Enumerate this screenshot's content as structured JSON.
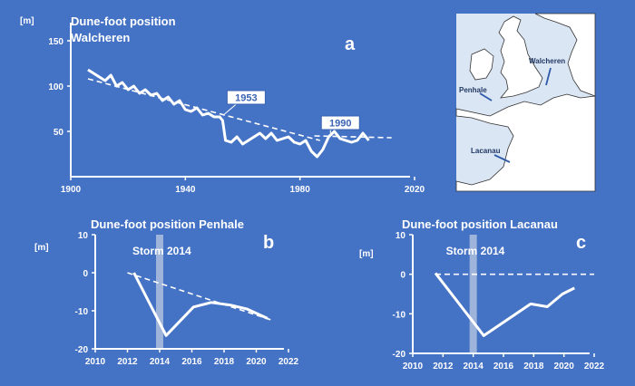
{
  "chart_data": [
    {
      "type": "line",
      "panel_label": "a",
      "title": [
        "Dune-foot position",
        "Walcheren"
      ],
      "ylabel": "[m]",
      "xlim": [
        1900,
        2020
      ],
      "ylim": [
        0,
        170
      ],
      "x_ticks": [
        1900,
        1940,
        1980,
        2020
      ],
      "y_ticks": [
        50,
        100,
        150
      ],
      "series": [
        {
          "style": "solid",
          "x": [
            1906,
            1910,
            1912,
            1914,
            1916,
            1918,
            1920,
            1922,
            1924,
            1926,
            1928,
            1930,
            1932,
            1934,
            1936,
            1938,
            1940,
            1942,
            1944,
            1946,
            1948,
            1950,
            1952,
            1953,
            1954,
            1956,
            1958,
            1960,
            1962,
            1964,
            1966,
            1968,
            1970,
            1972,
            1974,
            1976,
            1978,
            1980,
            1982,
            1984,
            1986,
            1988,
            1990,
            1992,
            1994,
            1996,
            1998,
            2000,
            2002,
            2004
          ],
          "y": [
            118,
            110,
            106,
            112,
            100,
            104,
            96,
            100,
            92,
            96,
            90,
            92,
            84,
            88,
            80,
            84,
            74,
            72,
            76,
            68,
            70,
            66,
            66,
            62,
            40,
            38,
            44,
            36,
            40,
            44,
            48,
            42,
            48,
            40,
            42,
            44,
            38,
            36,
            40,
            28,
            22,
            30,
            44,
            50,
            42,
            40,
            38,
            40,
            48,
            40
          ]
        },
        {
          "style": "dashed",
          "x": [
            1906,
            1987
          ],
          "y": [
            108,
            40
          ]
        },
        {
          "style": "dashed",
          "x": [
            1985,
            2012
          ],
          "y": [
            45,
            43
          ]
        }
      ],
      "annotations": [
        {
          "text": "1953",
          "x": 1953,
          "y": 66
        },
        {
          "text": "1990",
          "x": 1990,
          "y": 45
        }
      ],
      "map": {
        "labels": [
          "Walcheren",
          "Penhale",
          "Lacanau"
        ]
      }
    },
    {
      "type": "line",
      "panel_label": "b",
      "title": "Dune-foot position Penhale",
      "ylabel": "[m]",
      "xlim": [
        2010,
        2022
      ],
      "ylim": [
        -20,
        10
      ],
      "x_ticks": [
        2010,
        2012,
        2014,
        2016,
        2018,
        2020,
        2022
      ],
      "y_ticks": [
        -20,
        -10,
        0,
        10
      ],
      "storm": {
        "label": "Storm 2014",
        "x": 2014
      },
      "series": [
        {
          "style": "solid",
          "x": [
            2012.4,
            2014.4,
            2016.1,
            2017.2,
            2018.4,
            2019.4,
            2020.7
          ],
          "y": [
            0,
            -16.5,
            -9,
            -7.8,
            -8.5,
            -9.5,
            -12
          ]
        },
        {
          "style": "dashed",
          "x": [
            2012,
            2021
          ],
          "y": [
            0,
            -12.5
          ]
        }
      ]
    },
    {
      "type": "line",
      "panel_label": "c",
      "title": "Dune-foot position Lacanau",
      "ylabel": "[m]",
      "xlim": [
        2010,
        2022
      ],
      "ylim": [
        -20,
        10
      ],
      "x_ticks": [
        2010,
        2012,
        2014,
        2016,
        2018,
        2020,
        2022
      ],
      "y_ticks": [
        -20,
        -10,
        0,
        10
      ],
      "storm": {
        "label": "Storm 2014",
        "x": 2014
      },
      "series": [
        {
          "style": "solid",
          "x": [
            2011.5,
            2014.7,
            2017.8,
            2018.9,
            2019.9,
            2020.7
          ],
          "y": [
            0.3,
            -15.5,
            -7.5,
            -8.2,
            -5,
            -3.5
          ]
        },
        {
          "style": "dashed",
          "x": [
            2011.5,
            2022
          ],
          "y": [
            0,
            0
          ]
        }
      ]
    }
  ]
}
